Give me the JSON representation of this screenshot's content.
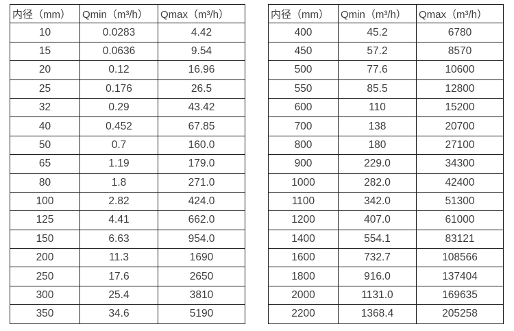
{
  "page": {
    "background": "#ffffff",
    "text_color": "#3d3d3d",
    "border_color": "#1f1f1f"
  },
  "tables": [
    {
      "name": "flow-table-small-diameters",
      "headers": [
        "内径（mm）",
        "Qmin（m³/h）",
        "Qmax（m³/h）"
      ],
      "rows": [
        [
          "10",
          "0.0283",
          "4.42"
        ],
        [
          "15",
          "0.0636",
          "9.54"
        ],
        [
          "20",
          "0.12",
          "16.96"
        ],
        [
          "25",
          "0.176",
          "26.5"
        ],
        [
          "32",
          "0.29",
          "43.42"
        ],
        [
          "40",
          "0.452",
          "67.85"
        ],
        [
          "50",
          "0.7",
          "160.0"
        ],
        [
          "65",
          "1.19",
          "179.0"
        ],
        [
          "80",
          "1.8",
          "271.0"
        ],
        [
          "100",
          "2.82",
          "424.0"
        ],
        [
          "125",
          "4.41",
          "662.0"
        ],
        [
          "150",
          "6.63",
          "954.0"
        ],
        [
          "200",
          "11.3",
          "1690"
        ],
        [
          "250",
          "17.6",
          "2650"
        ],
        [
          "300",
          "25.4",
          "3810"
        ],
        [
          "350",
          "34.6",
          "5190"
        ]
      ]
    },
    {
      "name": "flow-table-large-diameters",
      "headers": [
        "内径（mm）",
        "Qmin（m³/h）",
        "Qmax（m³/h）"
      ],
      "rows": [
        [
          "400",
          "45.2",
          "6780"
        ],
        [
          "450",
          "57.2",
          "8570"
        ],
        [
          "500",
          "77.6",
          "10600"
        ],
        [
          "550",
          "85.5",
          "12800"
        ],
        [
          "600",
          "110",
          "15200"
        ],
        [
          "700",
          "138",
          "20700"
        ],
        [
          "800",
          "180",
          "27100"
        ],
        [
          "900",
          "229.0",
          "34300"
        ],
        [
          "1000",
          "282.0",
          "42400"
        ],
        [
          "1100",
          "342.0",
          "51300"
        ],
        [
          "1200",
          "407.0",
          "61000"
        ],
        [
          "1400",
          "554.1",
          "83121"
        ],
        [
          "1600",
          "732.7",
          "108566"
        ],
        [
          "1800",
          "916.0",
          "137404"
        ],
        [
          "2000",
          "1131.0",
          "169635"
        ],
        [
          "2200",
          "1368.4",
          "205258"
        ]
      ]
    }
  ]
}
